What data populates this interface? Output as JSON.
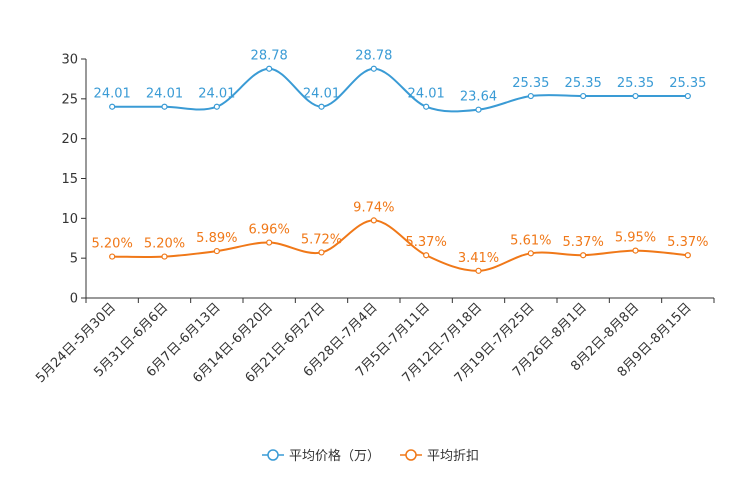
{
  "chart_data": {
    "type": "line",
    "title": "",
    "xlabel": "",
    "ylabel": "",
    "ylim": [
      0,
      30
    ],
    "yticks": [
      0,
      5,
      10,
      15,
      20,
      25,
      30
    ],
    "grid": false,
    "legend_position": "bottom",
    "categories": [
      "5月24日-5月30日",
      "5月31日-6月6日",
      "6月7日-6月13日",
      "6月14日-6月20日",
      "6月21日-6月27日",
      "6月28日-7月4日",
      "7月5日-7月11日",
      "7月12日-7月18日",
      "7月19日-7月25日",
      "7月26日-8月1日",
      "8月2日-8月8日",
      "8月9日-8月15日"
    ],
    "series": [
      {
        "name": "平均价格（万）",
        "color": "#3a9bd5",
        "values": [
          24.01,
          24.01,
          24.01,
          28.78,
          24.01,
          28.78,
          24.01,
          23.64,
          25.35,
          25.35,
          25.35,
          25.35
        ],
        "labels": [
          "24.01",
          "24.01",
          "24.01",
          "28.78",
          "24.01",
          "28.78",
          "24.01",
          "23.64",
          "25.35",
          "25.35",
          "25.35",
          "25.35"
        ]
      },
      {
        "name": "平均折扣",
        "color": "#f07818",
        "values": [
          5.2,
          5.2,
          5.89,
          6.96,
          5.72,
          9.74,
          5.37,
          3.41,
          5.61,
          5.37,
          5.95,
          5.37
        ],
        "labels": [
          "5.20%",
          "5.20%",
          "5.89%",
          "6.96%",
          "5.72%",
          "9.74%",
          "5.37%",
          "3.41%",
          "5.61%",
          "5.37%",
          "5.95%",
          "5.37%"
        ]
      }
    ]
  }
}
